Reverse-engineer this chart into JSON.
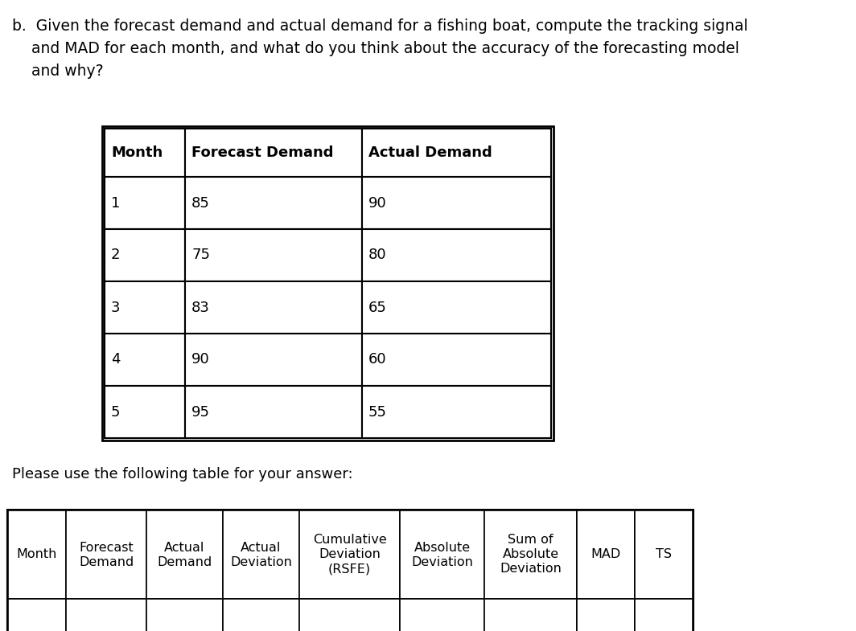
{
  "title_lines": [
    "b.  Given the forecast demand and actual demand for a fishing boat, compute the tracking signal",
    "    and MAD for each month, and what do you think about the accuracy of the forecasting model",
    "    and why?"
  ],
  "top_table": {
    "headers": [
      "Month",
      "Forecast Demand",
      "Actual Demand"
    ],
    "rows": [
      [
        "1",
        "85",
        "90"
      ],
      [
        "2",
        "75",
        "80"
      ],
      [
        "3",
        "83",
        "65"
      ],
      [
        "4",
        "90",
        "60"
      ],
      [
        "5",
        "95",
        "55"
      ]
    ]
  },
  "subtitle": "Please use the following table for your answer:",
  "bottom_table": {
    "col1_line1": "Month",
    "col2_line1": "Forecast",
    "col2_line2": "Demand",
    "col3_line1": "Actual",
    "col3_line2": "Demand",
    "col4_line1": "Actual",
    "col4_line2": "Deviation",
    "col5_line1": "Cumulative",
    "col5_line2": "Deviation",
    "col5_line3": "(RSFE)",
    "col6_line1": "Absolute",
    "col6_line2": "Deviation",
    "col7_line1": "Sum of",
    "col7_line2": "Absolute",
    "col7_line3": "Deviation",
    "col8_line1": "MAD",
    "col9_line1": "TS"
  },
  "background_color": "#ffffff",
  "text_color": "#000000",
  "font_size_title": 13.5,
  "font_size_table_header": 13,
  "font_size_table_data": 13,
  "font_size_subtitle": 13,
  "font_size_bottom_header": 11.5
}
